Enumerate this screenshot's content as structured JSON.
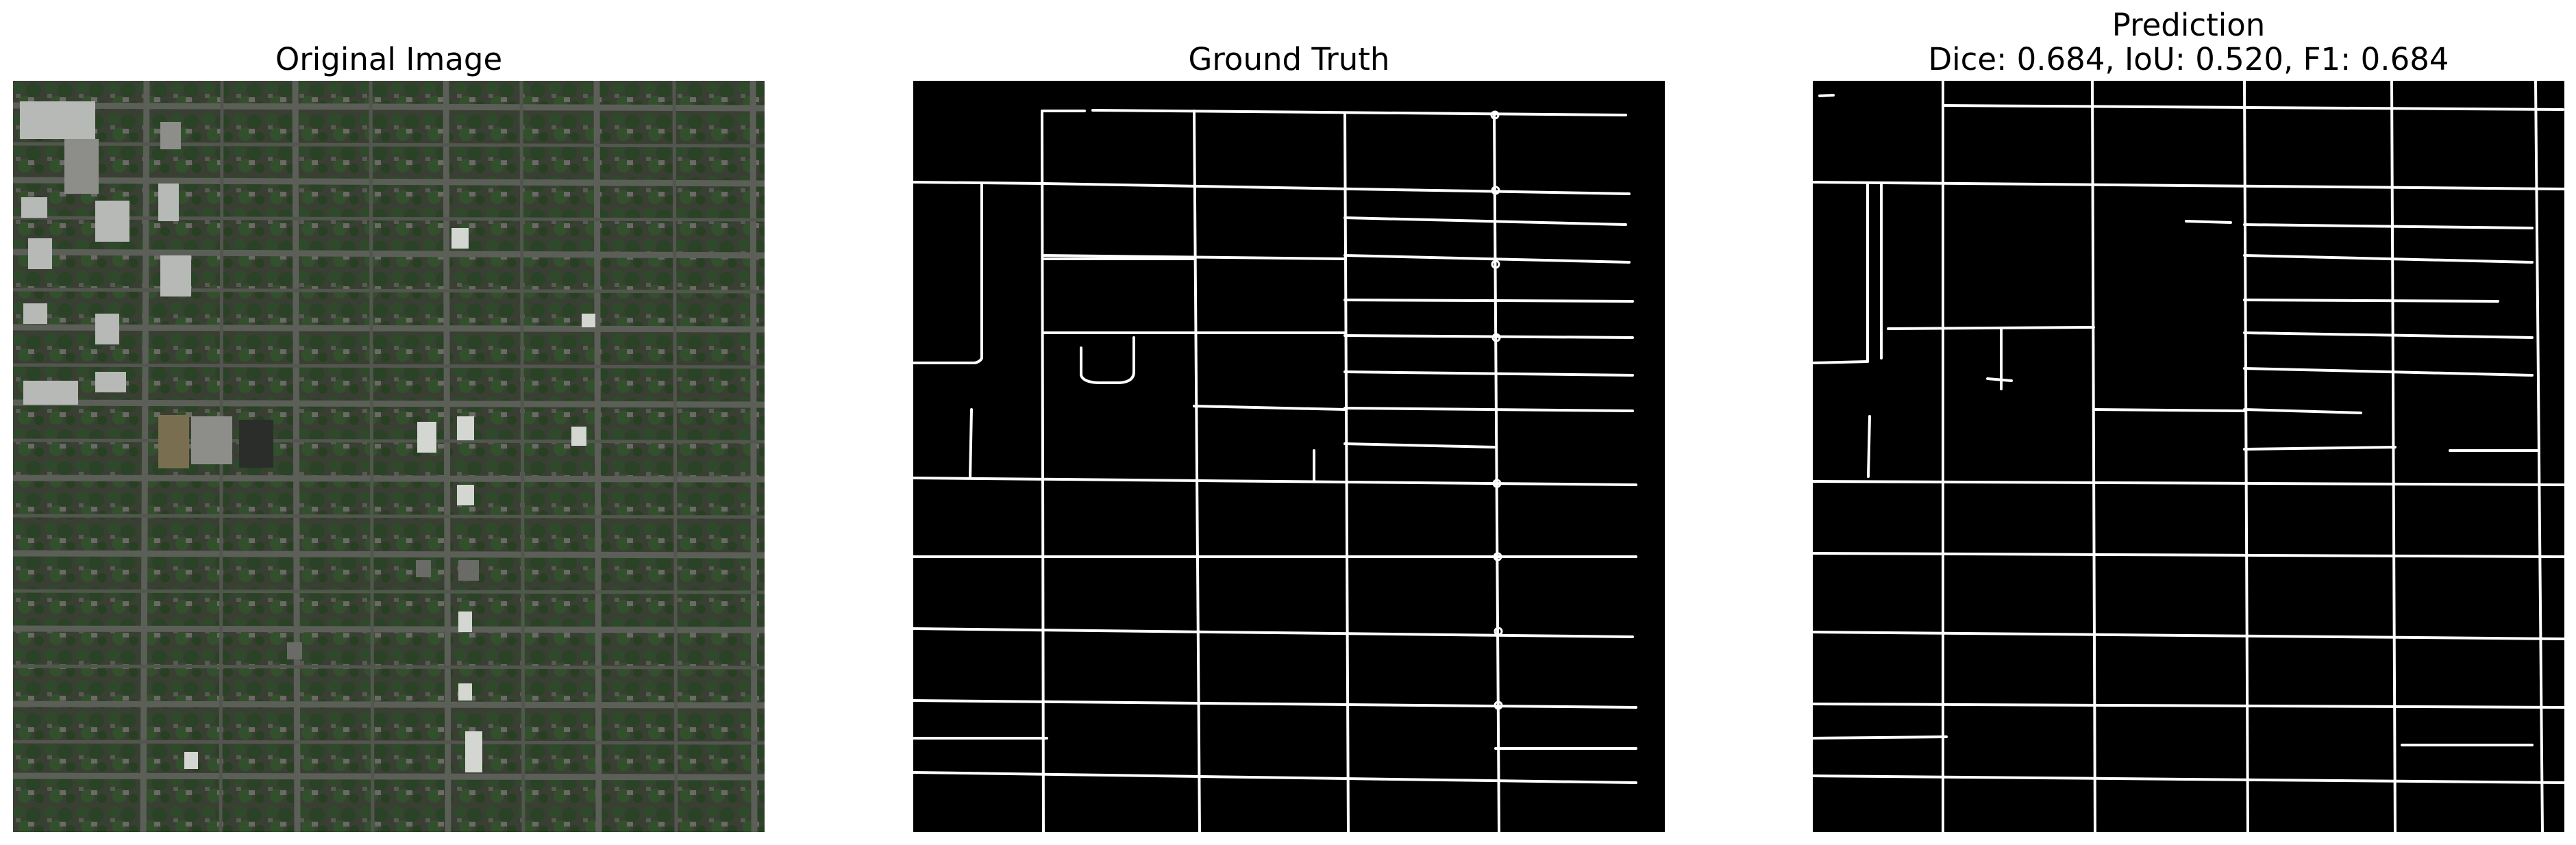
{
  "figure": {
    "panels": [
      {
        "id": "original",
        "title": "Original Image",
        "content": "aerial-photo"
      },
      {
        "id": "ground_truth",
        "title": "Ground Truth",
        "content": "road-mask"
      },
      {
        "id": "prediction",
        "title": "Prediction",
        "subtitle": "Dice: 0.684, IoU: 0.520, F1: 0.684",
        "content": "road-mask"
      }
    ]
  },
  "colors": {
    "figure_background": "#ffffff",
    "mask_background": "#000000",
    "mask_roads": "#ffffff",
    "aerial_base": "#3a3f33",
    "aerial_roads": "#5c5f58",
    "aerial_trees": "#2f4a2a"
  }
}
